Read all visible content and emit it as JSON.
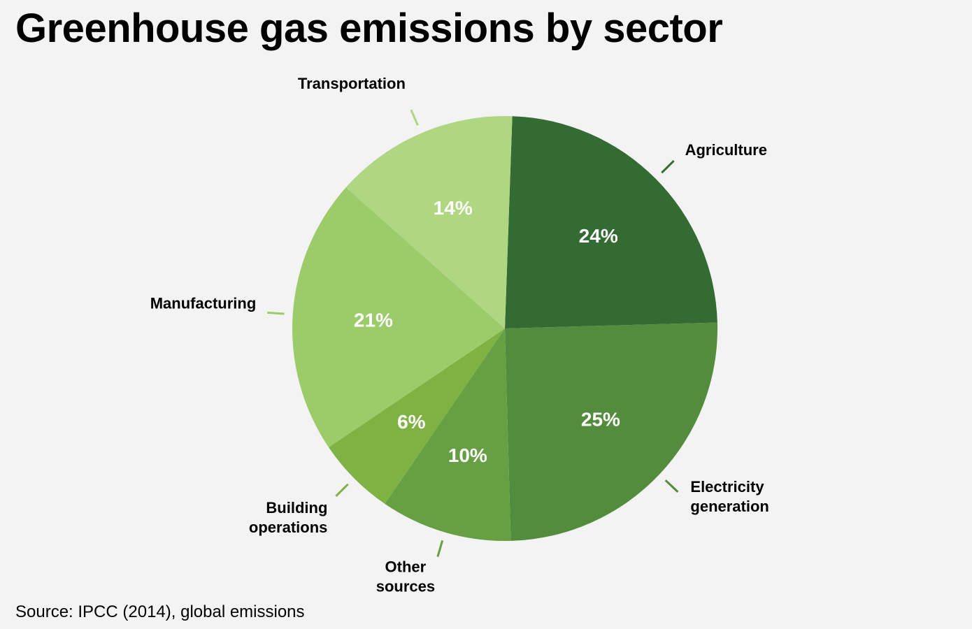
{
  "title": "Greenhouse gas emissions by sector",
  "source": "Source: IPCC (2014), global emissions",
  "chart_data": {
    "type": "pie",
    "title": "Greenhouse gas emissions by sector",
    "slices": [
      {
        "label": "Agriculture",
        "value": 24,
        "value_label": "24%",
        "color": "#336b33"
      },
      {
        "label": "Electricity generation",
        "label_lines": [
          "Electricity",
          "generation"
        ],
        "value": 25,
        "value_label": "25%",
        "color": "#548c3e"
      },
      {
        "label": "Other sources",
        "label_lines": [
          "Other",
          "sources"
        ],
        "value": 10,
        "value_label": "10%",
        "color": "#679f43"
      },
      {
        "label": "Building operations",
        "label_lines": [
          "Building",
          "operations"
        ],
        "value": 6,
        "value_label": "6%",
        "color": "#7eb344"
      },
      {
        "label": "Manufacturing",
        "value": 21,
        "value_label": "21%",
        "color": "#9ccb6a"
      },
      {
        "label": "Transportation",
        "value": 14,
        "value_label": "14%",
        "color": "#afd681"
      }
    ],
    "legend": "labels outside slices with leader lines"
  }
}
